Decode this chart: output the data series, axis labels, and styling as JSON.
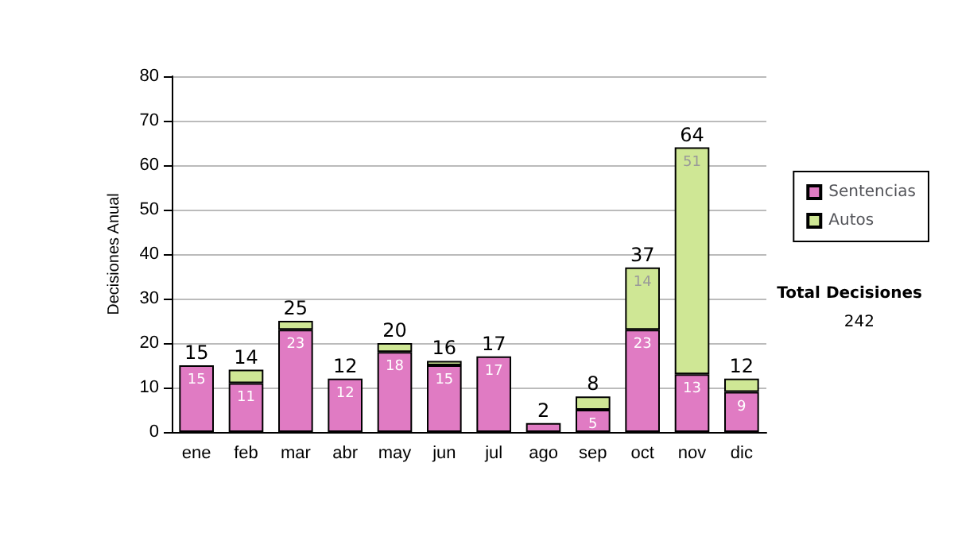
{
  "chart_data": {
    "type": "bar",
    "stacked": true,
    "ylabel": "Decisiones Anual",
    "categories": [
      "ene",
      "feb",
      "mar",
      "abr",
      "may",
      "jun",
      "jul",
      "ago",
      "sep",
      "oct",
      "nov",
      "dic"
    ],
    "series": [
      {
        "name": "Sentencias",
        "color": "#e07bc3",
        "values": [
          15,
          11,
          23,
          12,
          18,
          15,
          17,
          2,
          5,
          23,
          13,
          9
        ],
        "value_labels": [
          "15",
          "11",
          "23",
          "12",
          "18",
          "15",
          "17",
          null,
          "5",
          "23",
          "13",
          "9"
        ]
      },
      {
        "name": "Autos",
        "color": "#cfe795",
        "values": [
          0,
          3,
          2,
          0,
          2,
          1,
          0,
          0,
          3,
          14,
          51,
          3
        ],
        "value_labels": [
          null,
          null,
          null,
          null,
          null,
          null,
          null,
          null,
          null,
          "14",
          "51",
          null
        ]
      }
    ],
    "totals": [
      "15",
      "14",
      "25",
      "12",
      "20",
      "16",
      "17",
      "2",
      "8",
      "37",
      "64",
      "12"
    ],
    "ylim": [
      0,
      80
    ],
    "yticks": [
      0,
      10,
      20,
      30,
      40,
      50,
      60,
      70,
      80
    ],
    "grid": "y",
    "legend": "right",
    "annotations": [
      "Total Decisiones",
      "242"
    ]
  }
}
